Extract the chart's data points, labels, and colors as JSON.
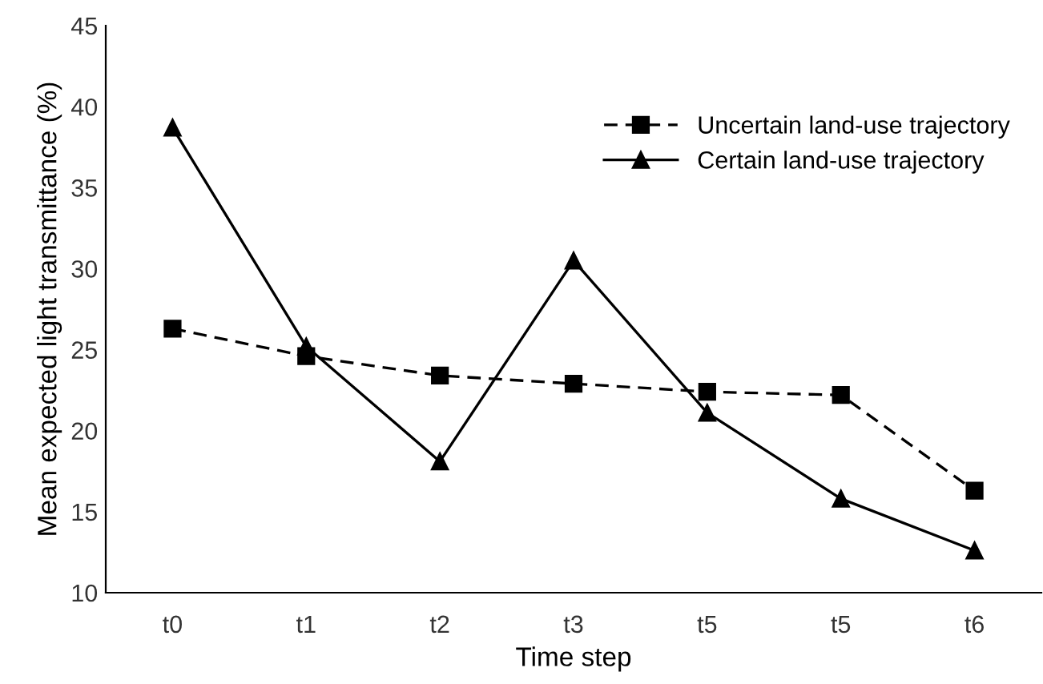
{
  "chart_data": {
    "type": "line",
    "xlabel": "Time step",
    "ylabel": "Mean expected light transmittance (%)",
    "categories": [
      "t0",
      "t1",
      "t2",
      "t3",
      "t5",
      "t5",
      "t6"
    ],
    "series": [
      {
        "name": "Uncertain land-use trajectory",
        "color": "#000000",
        "values": [
          26.3,
          24.6,
          23.4,
          22.9,
          22.4,
          22.2,
          16.3
        ],
        "marker": "square",
        "line_style": "dashed"
      },
      {
        "name": "Certain land-use trajectory",
        "color": "#000000",
        "values": [
          38.7,
          25.2,
          18.1,
          30.5,
          21.1,
          15.8,
          12.6
        ],
        "marker": "triangle",
        "line_style": "solid"
      }
    ],
    "ylim": [
      10,
      45
    ],
    "yticks": [
      10,
      15,
      20,
      25,
      30,
      35,
      40,
      45
    ],
    "grid": false,
    "legend": "top right"
  }
}
